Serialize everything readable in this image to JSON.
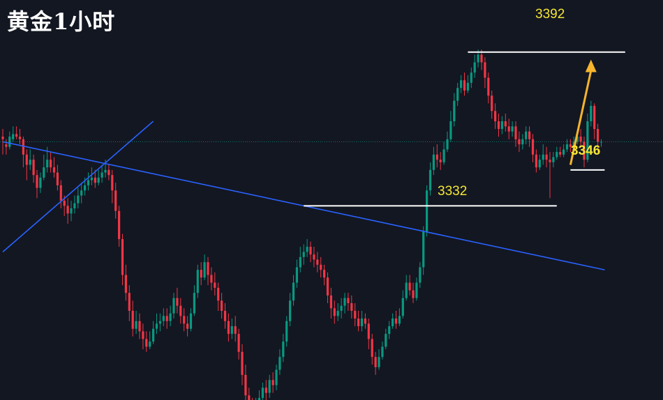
{
  "title": "黄金1小时",
  "colors": {
    "background": "#131722",
    "bull": "#089981",
    "bear": "#f23645",
    "trendline": "#2962ff",
    "level_line": "#ffffff",
    "label": "#f5e633",
    "arrow": "#f7b52c",
    "price_line": "#0d7b6a"
  },
  "chart_data": {
    "type": "candlestick",
    "timeframe": "1H",
    "title": "黄金1小时",
    "xlabel": "",
    "ylabel": "",
    "ylim": [
      3260,
      3402
    ],
    "grid": false,
    "level_labels": [
      "3392",
      "3332",
      "3346"
    ],
    "levels": [
      {
        "name": "resistance",
        "value": 3392,
        "label": "3392"
      },
      {
        "name": "support",
        "value": 3332,
        "label": "3332"
      },
      {
        "name": "current-low",
        "value": 3346,
        "label": "3346"
      }
    ],
    "current_price": 3357,
    "trendlines": [
      {
        "name": "descending",
        "from": {
          "bar": 0,
          "price": 3357
        },
        "to": {
          "bar": 176,
          "price": 3307
        }
      },
      {
        "name": "ascending",
        "from": {
          "bar": 0,
          "price": 3314
        },
        "to": {
          "bar": 44,
          "price": 3365
        }
      }
    ],
    "arrow": {
      "from": {
        "bar": 166,
        "price": 3348
      },
      "to": {
        "bar": 172,
        "price": 3388
      },
      "direction": "up"
    },
    "candles": [
      [
        3359,
        3358,
        3362,
        3352
      ],
      [
        3356,
        3355,
        3358,
        3352
      ],
      [
        3355,
        3359,
        3361,
        3354
      ],
      [
        3358,
        3360,
        3363,
        3357
      ],
      [
        3360,
        3359,
        3363,
        3358
      ],
      [
        3359,
        3358,
        3362,
        3356
      ],
      [
        3358,
        3352,
        3359,
        3347
      ],
      [
        3352,
        3348,
        3354,
        3342
      ],
      [
        3348,
        3350,
        3354,
        3346
      ],
      [
        3350,
        3344,
        3352,
        3341
      ],
      [
        3344,
        3339,
        3346,
        3335
      ],
      [
        3339,
        3343,
        3345,
        3337
      ],
      [
        3343,
        3347,
        3352,
        3342
      ],
      [
        3347,
        3350,
        3355,
        3345
      ],
      [
        3350,
        3347,
        3353,
        3345
      ],
      [
        3347,
        3345,
        3351,
        3343
      ],
      [
        3345,
        3340,
        3348,
        3338
      ],
      [
        3340,
        3334,
        3342,
        3331
      ],
      [
        3334,
        3332,
        3336,
        3328
      ],
      [
        3332,
        3329,
        3335,
        3325
      ],
      [
        3329,
        3331,
        3334,
        3326
      ],
      [
        3331,
        3333,
        3336,
        3329
      ],
      [
        3333,
        3336,
        3339,
        3331
      ],
      [
        3336,
        3338,
        3341,
        3333
      ],
      [
        3338,
        3340,
        3343,
        3336
      ],
      [
        3340,
        3342,
        3345,
        3338
      ],
      [
        3342,
        3343,
        3347,
        3340
      ],
      [
        3343,
        3341,
        3346,
        3339
      ],
      [
        3341,
        3343,
        3346,
        3340
      ],
      [
        3343,
        3345,
        3348,
        3341
      ],
      [
        3345,
        3346,
        3350,
        3343
      ],
      [
        3346,
        3344,
        3348,
        3342
      ],
      [
        3344,
        3338,
        3346,
        3333
      ],
      [
        3338,
        3330,
        3341,
        3327
      ],
      [
        3330,
        3319,
        3332,
        3316
      ],
      [
        3319,
        3305,
        3321,
        3301
      ],
      [
        3305,
        3298,
        3309,
        3295
      ],
      [
        3298,
        3291,
        3301,
        3287
      ],
      [
        3291,
        3284,
        3295,
        3281
      ],
      [
        3284,
        3287,
        3291,
        3282
      ],
      [
        3287,
        3283,
        3290,
        3280
      ],
      [
        3283,
        3280,
        3286,
        3276
      ],
      [
        3280,
        3277,
        3283,
        3275
      ],
      [
        3277,
        3279,
        3283,
        3276
      ],
      [
        3279,
        3284,
        3287,
        3278
      ],
      [
        3284,
        3286,
        3290,
        3282
      ],
      [
        3286,
        3287,
        3290,
        3283
      ],
      [
        3287,
        3289,
        3292,
        3285
      ],
      [
        3289,
        3287,
        3292,
        3284
      ],
      [
        3287,
        3290,
        3293,
        3285
      ],
      [
        3290,
        3296,
        3298,
        3288
      ],
      [
        3296,
        3293,
        3300,
        3290
      ],
      [
        3293,
        3289,
        3296,
        3286
      ],
      [
        3289,
        3286,
        3292,
        3283
      ],
      [
        3286,
        3284,
        3289,
        3281
      ],
      [
        3284,
        3290,
        3292,
        3283
      ],
      [
        3290,
        3298,
        3301,
        3289
      ],
      [
        3298,
        3307,
        3309,
        3296
      ],
      [
        3307,
        3304,
        3310,
        3301
      ],
      [
        3304,
        3310,
        3313,
        3303
      ],
      [
        3310,
        3305,
        3312,
        3301
      ],
      [
        3305,
        3302,
        3308,
        3299
      ],
      [
        3302,
        3300,
        3306,
        3297
      ],
      [
        3300,
        3295,
        3302,
        3291
      ],
      [
        3295,
        3291,
        3298,
        3288
      ],
      [
        3291,
        3287,
        3294,
        3284
      ],
      [
        3287,
        3282,
        3290,
        3279
      ],
      [
        3282,
        3285,
        3288,
        3280
      ],
      [
        3285,
        3282,
        3289,
        3279
      ],
      [
        3282,
        3275,
        3284,
        3272
      ],
      [
        3275,
        3266,
        3278,
        3262
      ],
      [
        3266,
        3258,
        3270,
        3255
      ],
      [
        3258,
        3254,
        3261,
        3250
      ],
      [
        3254,
        3249,
        3257,
        3247
      ],
      [
        3249,
        3253,
        3257,
        3246
      ],
      [
        3253,
        3257,
        3260,
        3251
      ],
      [
        3257,
        3261,
        3263,
        3255
      ],
      [
        3261,
        3259,
        3264,
        3256
      ],
      [
        3259,
        3264,
        3266,
        3257
      ],
      [
        3264,
        3262,
        3267,
        3259
      ],
      [
        3262,
        3268,
        3270,
        3260
      ],
      [
        3268,
        3273,
        3276,
        3266
      ],
      [
        3273,
        3279,
        3282,
        3271
      ],
      [
        3279,
        3287,
        3289,
        3277
      ],
      [
        3287,
        3295,
        3298,
        3285
      ],
      [
        3295,
        3302,
        3305,
        3293
      ],
      [
        3302,
        3308,
        3311,
        3300
      ],
      [
        3308,
        3312,
        3316,
        3306
      ],
      [
        3312,
        3314,
        3317,
        3309
      ],
      [
        3314,
        3316,
        3319,
        3312
      ],
      [
        3316,
        3313,
        3318,
        3310
      ],
      [
        3313,
        3311,
        3316,
        3308
      ],
      [
        3311,
        3309,
        3314,
        3306
      ],
      [
        3309,
        3307,
        3312,
        3304
      ],
      [
        3307,
        3304,
        3309,
        3301
      ],
      [
        3304,
        3297,
        3306,
        3294
      ],
      [
        3297,
        3292,
        3300,
        3288
      ],
      [
        3292,
        3289,
        3295,
        3286
      ],
      [
        3289,
        3291,
        3294,
        3287
      ],
      [
        3291,
        3293,
        3296,
        3288
      ],
      [
        3293,
        3296,
        3298,
        3290
      ],
      [
        3296,
        3294,
        3298,
        3291
      ],
      [
        3294,
        3291,
        3297,
        3288
      ],
      [
        3291,
        3288,
        3294,
        3285
      ],
      [
        3288,
        3285,
        3291,
        3283
      ],
      [
        3285,
        3288,
        3291,
        3283
      ],
      [
        3288,
        3286,
        3290,
        3284
      ],
      [
        3286,
        3280,
        3288,
        3276
      ],
      [
        3280,
        3273,
        3282,
        3270
      ],
      [
        3273,
        3269,
        3275,
        3266
      ],
      [
        3269,
        3273,
        3276,
        3268
      ],
      [
        3273,
        3277,
        3279,
        3272
      ],
      [
        3277,
        3282,
        3284,
        3276
      ],
      [
        3282,
        3285,
        3287,
        3280
      ],
      [
        3285,
        3288,
        3290,
        3284
      ],
      [
        3288,
        3286,
        3291,
        3284
      ],
      [
        3286,
        3289,
        3292,
        3285
      ],
      [
        3289,
        3296,
        3299,
        3288
      ],
      [
        3296,
        3302,
        3305,
        3295
      ],
      [
        3302,
        3299,
        3305,
        3297
      ],
      [
        3299,
        3296,
        3302,
        3294
      ],
      [
        3296,
        3302,
        3304,
        3295
      ],
      [
        3302,
        3308,
        3310,
        3300
      ],
      [
        3308,
        3322,
        3324,
        3305
      ],
      [
        3322,
        3338,
        3340,
        3320
      ],
      [
        3338,
        3346,
        3349,
        3336
      ],
      [
        3346,
        3352,
        3355,
        3344
      ],
      [
        3352,
        3350,
        3356,
        3347
      ],
      [
        3350,
        3349,
        3353,
        3346
      ],
      [
        3349,
        3354,
        3357,
        3348
      ],
      [
        3354,
        3358,
        3361,
        3353
      ],
      [
        3358,
        3365,
        3369,
        3357
      ],
      [
        3365,
        3373,
        3376,
        3363
      ],
      [
        3373,
        3378,
        3380,
        3371
      ],
      [
        3378,
        3381,
        3383,
        3376
      ],
      [
        3381,
        3377,
        3384,
        3375
      ],
      [
        3377,
        3380,
        3383,
        3376
      ],
      [
        3380,
        3384,
        3386,
        3378
      ],
      [
        3384,
        3388,
        3391,
        3382
      ],
      [
        3388,
        3391,
        3393,
        3386
      ],
      [
        3391,
        3388,
        3393,
        3385
      ],
      [
        3388,
        3382,
        3390,
        3378
      ],
      [
        3382,
        3375,
        3384,
        3372
      ],
      [
        3375,
        3369,
        3377,
        3366
      ],
      [
        3369,
        3365,
        3372,
        3362
      ],
      [
        3365,
        3362,
        3368,
        3359
      ],
      [
        3362,
        3365,
        3367,
        3360
      ],
      [
        3365,
        3363,
        3368,
        3361
      ],
      [
        3363,
        3361,
        3366,
        3358
      ],
      [
        3361,
        3363,
        3365,
        3359
      ],
      [
        3363,
        3358,
        3365,
        3355
      ],
      [
        3358,
        3356,
        3361,
        3353
      ],
      [
        3356,
        3358,
        3360,
        3354
      ],
      [
        3358,
        3361,
        3363,
        3356
      ],
      [
        3361,
        3358,
        3363,
        3355
      ],
      [
        3358,
        3352,
        3360,
        3349
      ],
      [
        3352,
        3347,
        3354,
        3345
      ],
      [
        3347,
        3350,
        3352,
        3346
      ],
      [
        3350,
        3352,
        3356,
        3348
      ],
      [
        3352,
        3350,
        3355,
        3347
      ],
      [
        3350,
        3349,
        3353,
        3335
      ],
      [
        3349,
        3351,
        3353,
        3347
      ],
      [
        3351,
        3353,
        3355,
        3350
      ],
      [
        3353,
        3352,
        3355,
        3351
      ],
      [
        3352,
        3354,
        3356,
        3351
      ],
      [
        3354,
        3356,
        3358,
        3353
      ],
      [
        3356,
        3355,
        3358,
        3353
      ],
      [
        3355,
        3357,
        3359,
        3354
      ],
      [
        3357,
        3359,
        3361,
        3356
      ],
      [
        3359,
        3357,
        3362,
        3355
      ],
      [
        3357,
        3350,
        3359,
        3347
      ],
      [
        3350,
        3365,
        3368,
        3349
      ],
      [
        3365,
        3371,
        3373,
        3363
      ],
      [
        3371,
        3362,
        3372,
        3358
      ],
      [
        3362,
        3357,
        3364,
        3353
      ],
      [
        3357,
        3357,
        3358,
        3355
      ]
    ]
  }
}
